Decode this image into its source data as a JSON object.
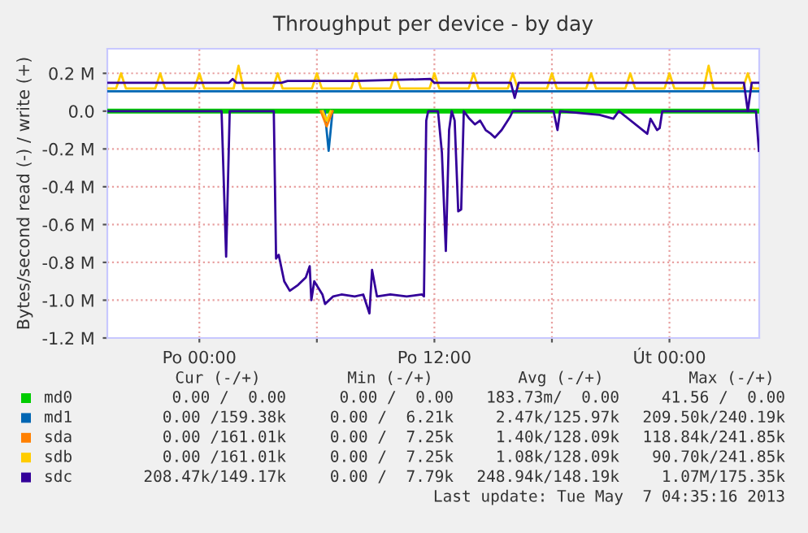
{
  "chart_data": {
    "type": "line",
    "title": "Throughput per device - by day",
    "ylabel": "Bytes/second read (-) / write (+)",
    "xlim": [
      "2013-05-05T19:18",
      "2013-05-07T04:35"
    ],
    "xticks": [
      {
        "value": "2013-05-06T00:00",
        "label": "Po 00:00"
      },
      {
        "value": "2013-05-06T06:00",
        "label": null
      },
      {
        "value": "2013-05-06T12:00",
        "label": "Po 12:00"
      },
      {
        "value": "2013-05-06T18:00",
        "label": null
      },
      {
        "value": "2013-05-07T00:00",
        "label": "Út 00:00"
      }
    ],
    "ylim": [
      -1.2,
      0.33
    ],
    "yticks": [
      {
        "value": -1.2,
        "label": "-1.2 M"
      },
      {
        "value": -1.0,
        "label": "-1.0 M"
      },
      {
        "value": -0.8,
        "label": "-0.8 M"
      },
      {
        "value": -0.6,
        "label": "-0.6 M"
      },
      {
        "value": -0.4,
        "label": "-0.4 M"
      },
      {
        "value": -0.2,
        "label": "-0.2 M"
      },
      {
        "value": 0.0,
        "label": "0.0"
      },
      {
        "value": 0.2,
        "label": "0.2 M"
      }
    ],
    "grid": true,
    "legend": "bottom",
    "marker": "none",
    "line_style": "solid",
    "series": [
      {
        "name": "md0",
        "color": "#00cc00",
        "x": [
          "2013-05-05T19:18",
          "2013-05-07T04:35"
        ],
        "values": [
          0,
          0
        ]
      },
      {
        "name": "md1",
        "color": "#0066b3",
        "x": [
          "2013-05-05T19:18",
          "2013-05-07T04:35"
        ],
        "values": [
          0.105,
          0.105
        ]
      },
      {
        "color": "#0066b3",
        "x": [
          "2013-05-06T06:24",
          "2013-05-06T06:36",
          "2013-05-06T06:48"
        ],
        "values": [
          0,
          -0.21,
          0
        ]
      },
      {
        "name": "sda",
        "color": "#ff8000",
        "x": [
          "2013-05-06T06:12",
          "2013-05-06T06:30",
          "2013-05-06T06:48"
        ],
        "values": [
          0,
          -0.08,
          0
        ]
      },
      {
        "name": "sdb",
        "color": "#ffcc00",
        "x": [
          "2013-05-05T19:18",
          "2013-05-05T19:45",
          "2013-05-05T20:00",
          "2013-05-05T20:15",
          "2013-05-05T21:45",
          "2013-05-05T22:00",
          "2013-05-05T22:15",
          "2013-05-05T23:45",
          "2013-05-06T00:00",
          "2013-05-06T00:15",
          "2013-05-06T01:45",
          "2013-05-06T02:00",
          "2013-05-06T02:15",
          "2013-05-06T03:45",
          "2013-05-06T04:00",
          "2013-05-06T04:15",
          "2013-05-06T05:45",
          "2013-05-06T06:00",
          "2013-05-06T06:15",
          "2013-05-06T07:45",
          "2013-05-06T08:00",
          "2013-05-06T08:15",
          "2013-05-06T09:45",
          "2013-05-06T10:00",
          "2013-05-06T10:15",
          "2013-05-06T11:45",
          "2013-05-06T12:00",
          "2013-05-06T12:15",
          "2013-05-06T13:45",
          "2013-05-06T14:00",
          "2013-05-06T14:15",
          "2013-05-06T15:45",
          "2013-05-06T16:00",
          "2013-05-06T16:15",
          "2013-05-06T17:45",
          "2013-05-06T18:00",
          "2013-05-06T18:15",
          "2013-05-06T19:45",
          "2013-05-06T20:00",
          "2013-05-06T20:15",
          "2013-05-06T21:45",
          "2013-05-06T22:00",
          "2013-05-06T22:15",
          "2013-05-06T23:45",
          "2013-05-07T00:00",
          "2013-05-07T00:15",
          "2013-05-07T01:45",
          "2013-05-07T02:00",
          "2013-05-07T02:15",
          "2013-05-07T03:45",
          "2013-05-07T04:00",
          "2013-05-07T04:15",
          "2013-05-07T04:35"
        ],
        "values": [
          0.12,
          0.12,
          0.2,
          0.12,
          0.12,
          0.2,
          0.12,
          0.12,
          0.2,
          0.12,
          0.12,
          0.24,
          0.12,
          0.12,
          0.2,
          0.12,
          0.12,
          0.2,
          0.12,
          0.12,
          0.2,
          0.12,
          0.12,
          0.2,
          0.12,
          0.12,
          0.2,
          0.12,
          0.12,
          0.2,
          0.12,
          0.12,
          0.2,
          0.12,
          0.12,
          0.2,
          0.12,
          0.12,
          0.2,
          0.12,
          0.12,
          0.2,
          0.12,
          0.12,
          0.2,
          0.12,
          0.12,
          0.24,
          0.12,
          0.12,
          0.2,
          0.12,
          0.12
        ]
      },
      {
        "color": "#ffcc00",
        "x": [
          "2013-05-06T06:18",
          "2013-05-06T06:30",
          "2013-05-06T06:42"
        ],
        "values": [
          0,
          -0.05,
          0
        ]
      },
      {
        "name": "sdc",
        "color": "#330099",
        "x": [
          "2013-05-05T19:18",
          "2013-05-06T01:30",
          "2013-05-06T01:42",
          "2013-05-06T01:54",
          "2013-05-06T04:12",
          "2013-05-06T04:30",
          "2013-05-06T08:00",
          "2013-05-06T11:48",
          "2013-05-06T12:00",
          "2013-05-06T15:54",
          "2013-05-06T16:06",
          "2013-05-06T16:18",
          "2013-05-07T03:48",
          "2013-05-07T04:00",
          "2013-05-07T04:12",
          "2013-05-07T04:35"
        ],
        "values": [
          0.15,
          0.15,
          0.17,
          0.15,
          0.15,
          0.16,
          0.16,
          0.17,
          0.15,
          0.15,
          0.07,
          0.15,
          0.15,
          0.0,
          0.15,
          0.15
        ]
      },
      {
        "color": "#330099",
        "x": [
          "2013-05-05T19:18",
          "2013-05-06T01:08",
          "2013-05-06T01:22",
          "2013-05-06T01:33",
          "2013-05-06T03:48",
          "2013-05-06T03:55",
          "2013-05-06T04:03",
          "2013-05-06T04:20",
          "2013-05-06T04:37",
          "2013-05-06T05:02",
          "2013-05-06T05:26",
          "2013-05-06T05:38",
          "2013-05-06T05:43",
          "2013-05-06T05:52",
          "2013-05-06T06:17",
          "2013-05-06T06:25",
          "2013-05-06T06:50",
          "2013-05-06T07:15",
          "2013-05-06T07:56",
          "2013-05-06T08:22",
          "2013-05-06T08:41",
          "2013-05-06T08:49",
          "2013-05-06T09:04",
          "2013-05-06T09:45",
          "2013-05-06T10:35",
          "2013-05-06T11:22",
          "2013-05-06T11:28",
          "2013-05-06T11:35",
          "2013-05-06T11:41",
          "2013-05-06T12:11",
          "2013-05-06T12:23",
          "2013-05-06T12:35",
          "2013-05-06T12:45",
          "2013-05-06T12:53",
          "2013-05-06T13:02",
          "2013-05-06T13:13",
          "2013-05-06T13:22",
          "2013-05-06T13:30",
          "2013-05-06T13:47",
          "2013-05-06T14:04",
          "2013-05-06T14:20",
          "2013-05-06T14:37",
          "2013-05-06T14:53",
          "2013-05-06T15:05",
          "2013-05-06T15:26",
          "2013-05-06T15:52",
          "2013-05-06T16:00",
          "2013-05-06T18:05",
          "2013-05-06T18:17",
          "2013-05-06T18:25",
          "2013-05-06T20:26",
          "2013-05-06T21:08",
          "2013-05-06T21:25",
          "2013-05-06T22:52",
          "2013-05-06T23:02",
          "2013-05-06T23:22",
          "2013-05-06T23:30",
          "2013-05-06T23:38",
          "2013-05-07T04:25",
          "2013-05-07T04:34"
        ],
        "values": [
          0,
          0,
          -0.77,
          0,
          0,
          -0.78,
          -0.76,
          -0.9,
          -0.95,
          -0.92,
          -0.88,
          -0.82,
          -1.0,
          -0.9,
          -0.97,
          -1.02,
          -0.98,
          -0.97,
          -0.98,
          -0.97,
          -1.07,
          -0.84,
          -0.98,
          -0.97,
          -0.98,
          -0.97,
          -0.98,
          -0.05,
          0,
          0,
          -0.22,
          -0.74,
          -0.1,
          0,
          -0.05,
          -0.53,
          -0.52,
          0,
          -0.04,
          -0.07,
          -0.05,
          -0.1,
          -0.12,
          -0.14,
          -0.1,
          -0.03,
          0,
          0,
          -0.1,
          0,
          -0.02,
          -0.04,
          0,
          -0.12,
          -0.04,
          -0.1,
          -0.09,
          0,
          0,
          -0.21
        ]
      }
    ],
    "annotations": [
      "Cur (-/+)",
      "Min (-/+)",
      "Avg (-/+)",
      "Max (-/+)",
      "0.00 /  0.00",
      "0.00 /  0.00",
      "183.73m/  0.00",
      "41.56 /  0.00",
      "0.00 /159.38k",
      "0.00 /  6.21k",
      "2.47k/125.97k",
      "209.50k/240.19k",
      "0.00 /161.01k",
      "0.00 /  7.25k",
      "1.40k/128.09k",
      "118.84k/241.85k",
      "0.00 /161.01k",
      "0.00 /  7.25k",
      "1.08k/128.09k",
      "90.70k/241.85k",
      "208.47k/149.17k",
      "0.00 /  7.79k",
      "248.94k/148.19k",
      "1.07M/175.35k",
      "Last update: Tue May  7 04:35:16 2013"
    ]
  }
}
